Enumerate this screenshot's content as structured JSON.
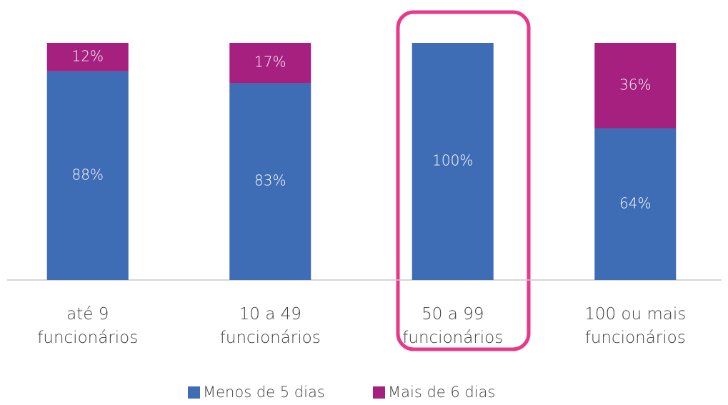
{
  "chart_data": {
    "type": "stacked_bar",
    "categories": [
      "até 9\nfuncionários",
      "10 a 49\nfuncionários",
      "50 a 99\nfuncionários",
      "100 ou mais\nfuncionários"
    ],
    "series": [
      {
        "name": "Menos de 5 dias",
        "color": "#3e6db5",
        "values": [
          88,
          83,
          100,
          64
        ],
        "value_labels": [
          "88%",
          "83%",
          "100%",
          "64%"
        ]
      },
      {
        "name": "Mais de 6 dias",
        "color": "#a5207f",
        "values": [
          12,
          17,
          null,
          36
        ],
        "value_labels": [
          "12%",
          "17%",
          null,
          "36%"
        ]
      }
    ],
    "ylim": [
      0,
      100
    ],
    "legend": "bottom"
  }
}
